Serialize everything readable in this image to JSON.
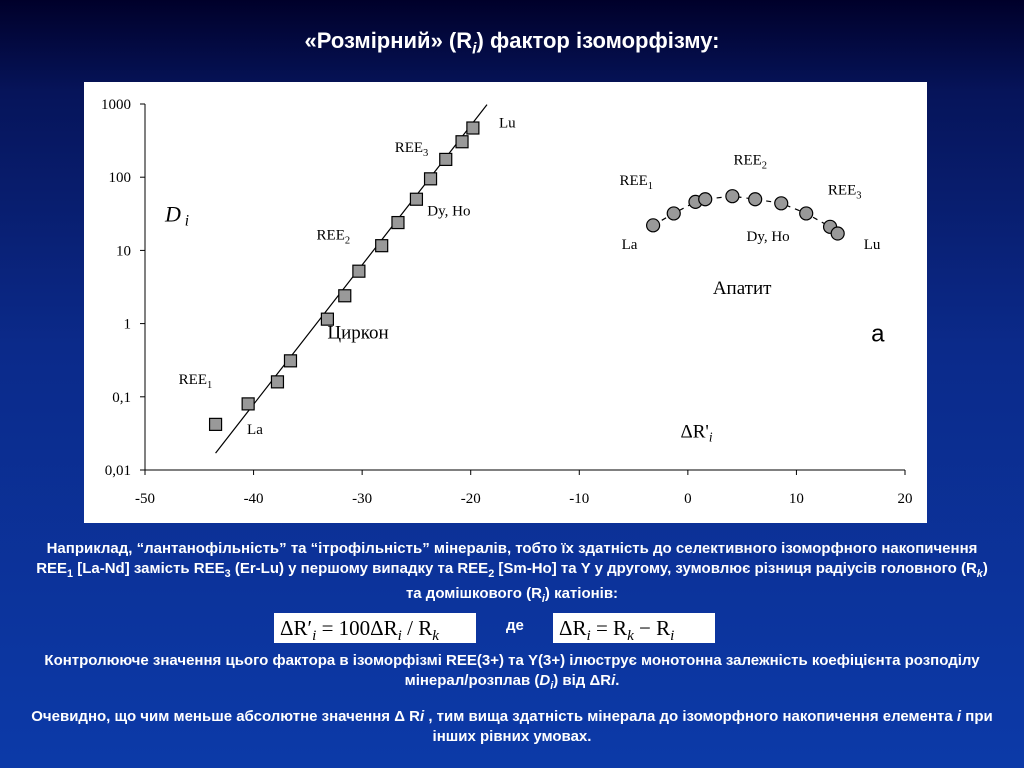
{
  "slide": {
    "title_prefix": "«Розмірний» (R",
    "title_sub": "i",
    "title_suffix": ") фактор ізоморфізму:"
  },
  "caption": {
    "p1": "Наприклад, “лантанофільність” та “ітрофільність” мінералів, тобто їх здатність до селективного ізоморфного накопичення REE",
    "p1_sub1": "1",
    "p1_mid1": " [La-Nd] замість REE",
    "p1_sub2": "3",
    "p1_mid2": " (Er-Lu) у першому випадку та REE",
    "p1_sub3": "2",
    "p1_mid3": " [Sm-Ho] та Y у другому, зумовлює різниця радіусів головного (R",
    "p1_sub4": "k",
    "p1_mid4": ") та домішкового (R",
    "p1_sub5": "i",
    "p1_end": ") катіонів:",
    "where": "де",
    "p2_a": "Контролююче значення цього фактора в ізоморфізмі REE(3+) та Y(3+) ілюструє монотонна залежність коефіцієнта розподілу мінерал/розплав (",
    "p2_b": "D",
    "p2_c": "i",
    "p2_d": ") від  ΔR",
    "p2_e": "i",
    "p2_f": ".",
    "p3_a": "Очевидно, що чим меньше абсолютне значення Δ R",
    "p3_b": "i",
    "p3_c": " , тим вища здатність мінерала до ізоморфного накопичення елемента ",
    "p3_d": "i",
    "p3_e": " при інших рівних умовах."
  },
  "formula1": {
    "lhs": "ΔR′",
    "lhs_sub": "i",
    "eq": " = 100ΔR",
    "mid_sub": "i",
    "div": " / R",
    "end_sub": "k"
  },
  "formula2": {
    "lhs": "ΔR",
    "lhs_sub": "i",
    "eq": " = R",
    "mid_sub": "k",
    "minus": " − R",
    "end_sub": "i"
  },
  "chart_data": {
    "type": "scatter",
    "xlim": [
      -50,
      20
    ],
    "ylim": [
      0.01,
      1000
    ],
    "yscale": "log",
    "x_ticks": [
      -50,
      -40,
      -30,
      -20,
      -10,
      0,
      10,
      20
    ],
    "x_tick_labels": [
      "-50",
      "-40",
      "-30",
      "-20",
      "-10",
      "0",
      "10",
      "20"
    ],
    "y_ticks": [
      0.01,
      0.1,
      1,
      10,
      100,
      1000
    ],
    "y_tick_labels": [
      "0,01",
      "0,1",
      "1",
      "10",
      "100",
      "1000"
    ],
    "ylabel": "D",
    "ylabel_sub": "i",
    "xlabel": "ΔR'",
    "xlabel_sub": "i",
    "panel_label": "а",
    "colors": {
      "marker_fill": "#999999",
      "marker_stroke": "#000000",
      "line": "#000000"
    },
    "series": [
      {
        "name": "Циркон",
        "marker": "square",
        "trend": "solid",
        "trend_x": [
          -43.5,
          -18.5
        ],
        "trend_y": [
          0.017,
          980
        ],
        "points": [
          {
            "x": -43.5,
            "y": 0.042
          },
          {
            "x": -40.5,
            "y": 0.08
          },
          {
            "x": -37.8,
            "y": 0.16
          },
          {
            "x": -36.6,
            "y": 0.31
          },
          {
            "x": -33.2,
            "y": 1.15
          },
          {
            "x": -31.6,
            "y": 2.4
          },
          {
            "x": -30.3,
            "y": 5.2
          },
          {
            "x": -28.2,
            "y": 11.6
          },
          {
            "x": -26.7,
            "y": 24
          },
          {
            "x": -25.0,
            "y": 50
          },
          {
            "x": -23.7,
            "y": 95
          },
          {
            "x": -22.3,
            "y": 175
          },
          {
            "x": -20.8,
            "y": 305
          },
          {
            "x": -19.8,
            "y": 470
          }
        ]
      },
      {
        "name": "Апатит",
        "marker": "circle",
        "trend": "dashed",
        "points": [
          {
            "x": -3.2,
            "y": 22
          },
          {
            "x": -1.3,
            "y": 32
          },
          {
            "x": 0.7,
            "y": 46
          },
          {
            "x": 1.6,
            "y": 50
          },
          {
            "x": 4.1,
            "y": 55
          },
          {
            "x": 6.2,
            "y": 50
          },
          {
            "x": 8.6,
            "y": 44
          },
          {
            "x": 10.9,
            "y": 32
          },
          {
            "x": 13.1,
            "y": 21
          },
          {
            "x": 13.8,
            "y": 17
          }
        ]
      }
    ],
    "annotations": [
      {
        "base": "REE",
        "sub": "1",
        "x": -46.9,
        "y": 0.15
      },
      {
        "base": "La",
        "sub": "",
        "x": -40.6,
        "y": 0.031
      },
      {
        "base": "REE",
        "sub": "2",
        "x": -34.2,
        "y": 14
      },
      {
        "base": "Dy, Ho",
        "sub": "",
        "x": -24.0,
        "y": 30
      },
      {
        "base": "REE",
        "sub": "3",
        "x": -27.0,
        "y": 220
      },
      {
        "base": "Lu",
        "sub": "",
        "x": -17.4,
        "y": 480
      },
      {
        "base": "Циркон",
        "sub": "",
        "x": -33.2,
        "y": 0.63
      },
      {
        "base": "REE",
        "sub": "1",
        "x": -6.3,
        "y": 78
      },
      {
        "base": "La",
        "sub": "",
        "x": -6.1,
        "y": 10.5
      },
      {
        "base": "REE",
        "sub": "2",
        "x": 4.2,
        "y": 150
      },
      {
        "base": "REE",
        "sub": "3",
        "x": 12.9,
        "y": 58
      },
      {
        "base": "Dy, Ho",
        "sub": "",
        "x": 5.4,
        "y": 13.5
      },
      {
        "base": "Lu",
        "sub": "",
        "x": 16.2,
        "y": 10.5
      },
      {
        "base": "Апатит",
        "sub": "",
        "x": 2.3,
        "y": 2.55
      }
    ]
  }
}
